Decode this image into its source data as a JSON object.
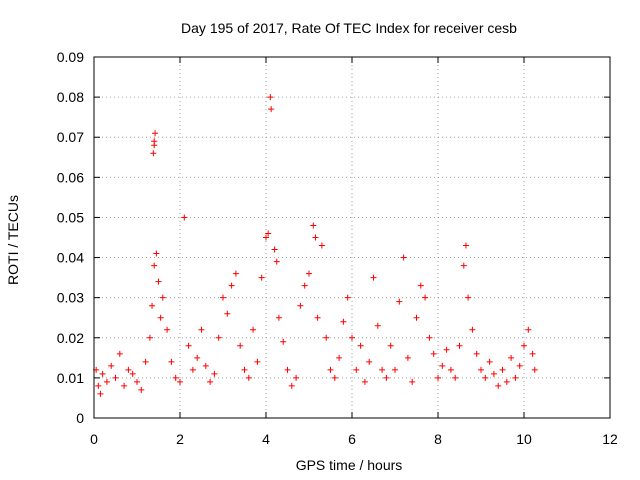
{
  "chart_data": {
    "type": "scatter",
    "title": "Day 195 of 2017, Rate Of TEC Index for receiver cesb",
    "xlabel": "GPS time / hours",
    "ylabel": "ROTI / TECUs",
    "xlim": [
      0,
      12
    ],
    "ylim": [
      0,
      0.09
    ],
    "x_ticks": [
      0,
      2,
      4,
      6,
      8,
      10,
      12
    ],
    "x_tick_labels": [
      "0",
      "2",
      "4",
      "6",
      "8",
      "10",
      "12"
    ],
    "y_ticks": [
      0,
      0.01,
      0.02,
      0.03,
      0.04,
      0.05,
      0.06,
      0.07,
      0.08,
      0.09
    ],
    "y_tick_labels": [
      "0",
      "0.01",
      "0.02",
      "0.03",
      "0.04",
      "0.05",
      "0.06",
      "0.07",
      "0.08",
      "0.09"
    ],
    "grid": true,
    "marker": "+",
    "series": [
      {
        "name": "ROTI",
        "color": "#ff0000",
        "points": [
          [
            0.05,
            0.012
          ],
          [
            0.1,
            0.008
          ],
          [
            0.15,
            0.006
          ],
          [
            0.2,
            0.011
          ],
          [
            0.3,
            0.009
          ],
          [
            0.4,
            0.013
          ],
          [
            0.5,
            0.01
          ],
          [
            0.6,
            0.016
          ],
          [
            0.7,
            0.008
          ],
          [
            0.8,
            0.012
          ],
          [
            0.9,
            0.011
          ],
          [
            1.0,
            0.009
          ],
          [
            1.1,
            0.007
          ],
          [
            1.2,
            0.014
          ],
          [
            1.3,
            0.02
          ],
          [
            1.35,
            0.028
          ],
          [
            1.4,
            0.038
          ],
          [
            1.45,
            0.041
          ],
          [
            1.5,
            0.034
          ],
          [
            1.55,
            0.025
          ],
          [
            1.38,
            0.066
          ],
          [
            1.4,
            0.069
          ],
          [
            1.42,
            0.071
          ],
          [
            1.4,
            0.068
          ],
          [
            1.6,
            0.03
          ],
          [
            1.7,
            0.022
          ],
          [
            1.8,
            0.014
          ],
          [
            1.9,
            0.01
          ],
          [
            2.0,
            0.009
          ],
          [
            2.1,
            0.05
          ],
          [
            2.2,
            0.018
          ],
          [
            2.3,
            0.012
          ],
          [
            2.4,
            0.015
          ],
          [
            2.5,
            0.022
          ],
          [
            2.6,
            0.013
          ],
          [
            2.7,
            0.009
          ],
          [
            2.8,
            0.011
          ],
          [
            2.9,
            0.02
          ],
          [
            3.0,
            0.03
          ],
          [
            3.1,
            0.026
          ],
          [
            3.2,
            0.033
          ],
          [
            3.3,
            0.036
          ],
          [
            3.4,
            0.018
          ],
          [
            3.5,
            0.012
          ],
          [
            3.6,
            0.01
          ],
          [
            3.7,
            0.022
          ],
          [
            3.8,
            0.014
          ],
          [
            3.9,
            0.035
          ],
          [
            4.0,
            0.045
          ],
          [
            4.05,
            0.046
          ],
          [
            4.1,
            0.08
          ],
          [
            4.12,
            0.077
          ],
          [
            4.2,
            0.042
          ],
          [
            4.25,
            0.039
          ],
          [
            4.3,
            0.025
          ],
          [
            4.4,
            0.019
          ],
          [
            4.5,
            0.012
          ],
          [
            4.6,
            0.008
          ],
          [
            4.7,
            0.01
          ],
          [
            4.8,
            0.028
          ],
          [
            4.9,
            0.033
          ],
          [
            5.0,
            0.036
          ],
          [
            5.1,
            0.048
          ],
          [
            5.15,
            0.045
          ],
          [
            5.2,
            0.025
          ],
          [
            5.3,
            0.043
          ],
          [
            5.4,
            0.02
          ],
          [
            5.5,
            0.012
          ],
          [
            5.6,
            0.01
          ],
          [
            5.7,
            0.015
          ],
          [
            5.8,
            0.024
          ],
          [
            5.9,
            0.03
          ],
          [
            6.0,
            0.02
          ],
          [
            6.1,
            0.012
          ],
          [
            6.2,
            0.018
          ],
          [
            6.3,
            0.009
          ],
          [
            6.4,
            0.014
          ],
          [
            6.5,
            0.035
          ],
          [
            6.6,
            0.023
          ],
          [
            6.7,
            0.012
          ],
          [
            6.8,
            0.01
          ],
          [
            6.9,
            0.018
          ],
          [
            7.0,
            0.012
          ],
          [
            7.1,
            0.029
          ],
          [
            7.2,
            0.04
          ],
          [
            7.3,
            0.015
          ],
          [
            7.4,
            0.009
          ],
          [
            7.5,
            0.025
          ],
          [
            7.6,
            0.033
          ],
          [
            7.7,
            0.03
          ],
          [
            7.8,
            0.02
          ],
          [
            7.9,
            0.016
          ],
          [
            8.0,
            0.01
          ],
          [
            8.1,
            0.013
          ],
          [
            8.2,
            0.017
          ],
          [
            8.3,
            0.012
          ],
          [
            8.4,
            0.01
          ],
          [
            8.5,
            0.018
          ],
          [
            8.6,
            0.038
          ],
          [
            8.65,
            0.043
          ],
          [
            8.7,
            0.03
          ],
          [
            8.8,
            0.022
          ],
          [
            8.9,
            0.016
          ],
          [
            9.0,
            0.012
          ],
          [
            9.1,
            0.01
          ],
          [
            9.2,
            0.014
          ],
          [
            9.3,
            0.011
          ],
          [
            9.4,
            0.008
          ],
          [
            9.5,
            0.012
          ],
          [
            9.6,
            0.009
          ],
          [
            9.7,
            0.015
          ],
          [
            9.8,
            0.01
          ],
          [
            9.9,
            0.013
          ],
          [
            10.0,
            0.018
          ],
          [
            10.1,
            0.022
          ],
          [
            10.2,
            0.016
          ],
          [
            10.25,
            0.012
          ]
        ]
      }
    ]
  }
}
